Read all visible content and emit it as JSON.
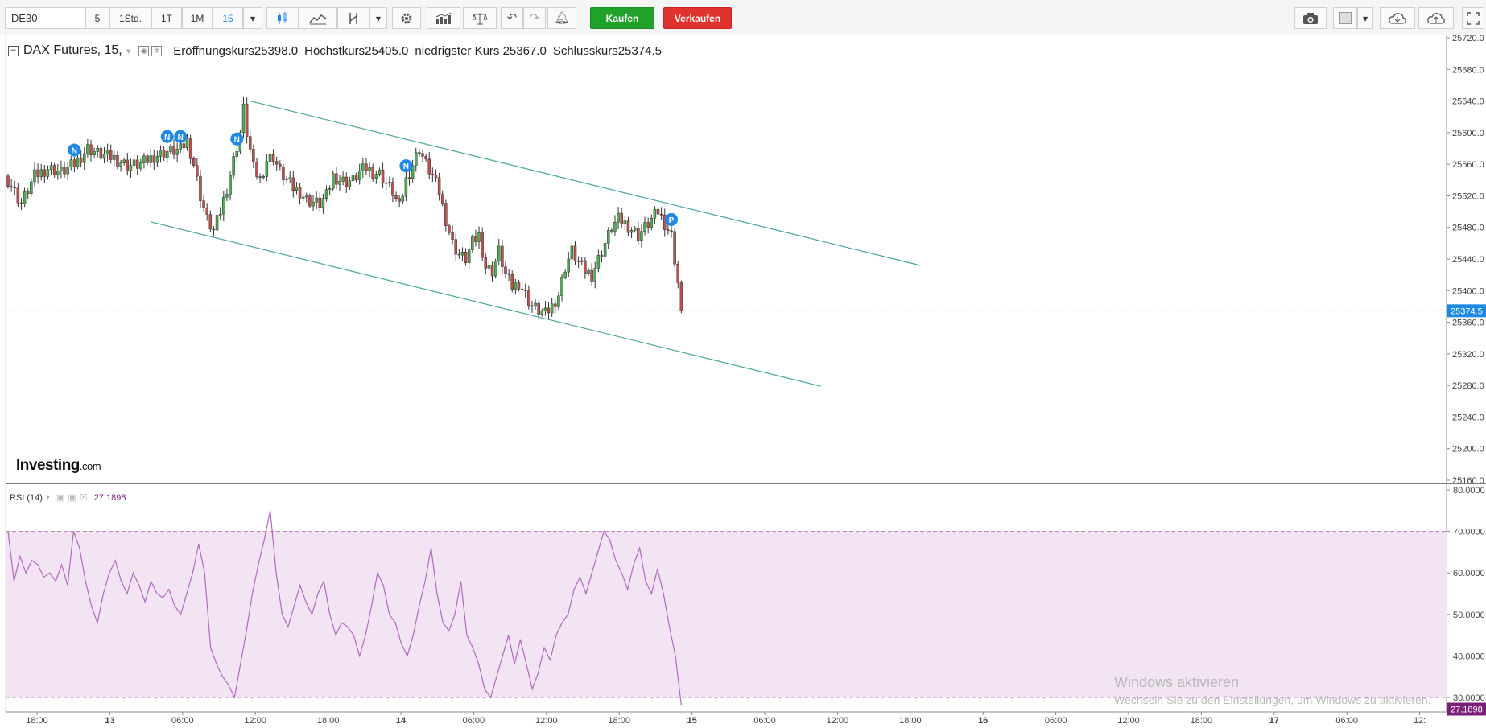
{
  "toolbar": {
    "symbol": "DE30",
    "intervals": [
      "5",
      "1Std.",
      "1T",
      "1M",
      "15"
    ],
    "active_interval": "15",
    "buy_label": "Kaufen",
    "sell_label": "Verkaufen"
  },
  "legend": {
    "title": "DAX Futures, 15,",
    "open_label": "Eröffnungskurs",
    "open_value": "25398.0",
    "high_label": "Höchstkurs",
    "high_value": "25405.0",
    "low_label": "niedrigster Kurs",
    "low_value": "25367.0",
    "close_label": "Schlusskurs",
    "close_value": "25374.5"
  },
  "rsi": {
    "label": "RSI (14)",
    "value": "27.1898"
  },
  "logo": {
    "main": "Investing",
    "suffix": ".com"
  },
  "watermark": {
    "line1": "Windows aktivieren",
    "line2": "Wechseln Sie zu den Einstellungen, um Windows zu aktivieren."
  },
  "colors": {
    "up": "#4caf50",
    "down": "#c0504d",
    "channel": "#4aa3a0",
    "rsi_line": "#b06ac0",
    "rsi_band": "#f2e4f2",
    "price_tag": "#1e88e5",
    "rsi_tag": "#7b1f7b"
  },
  "chart_data": [
    {
      "type": "candlestick",
      "title": "DAX Futures, 15,",
      "ylim": [
        25160,
        25720
      ],
      "y_ticks": [
        "25720.0",
        "25680.0",
        "25640.0",
        "25600.0",
        "25560.0",
        "25520.0",
        "25480.0",
        "25440.0",
        "25400.0",
        "25360.0",
        "25320.0",
        "25280.0",
        "25240.0",
        "25200.0",
        "25160.0"
      ],
      "x_ticks": [
        "18:00",
        "13",
        "06:00",
        "12:00",
        "18:00",
        "14",
        "06:00",
        "12:00",
        "18:00",
        "15",
        "06:00",
        "12:00",
        "18:00",
        "16",
        "06:00",
        "12:00",
        "18:00",
        "17",
        "06:00",
        "12:"
      ],
      "last_price": "25374.5",
      "close_path": [
        [
          0,
          25540
        ],
        [
          4,
          25510
        ],
        [
          8,
          25545
        ],
        [
          12,
          25555
        ],
        [
          16,
          25550
        ],
        [
          20,
          25560
        ],
        [
          24,
          25580
        ],
        [
          28,
          25572
        ],
        [
          32,
          25568
        ],
        [
          36,
          25558
        ],
        [
          40,
          25560
        ],
        [
          44,
          25570
        ],
        [
          48,
          25576
        ],
        [
          52,
          25578
        ],
        [
          54,
          25590
        ],
        [
          56,
          25560
        ],
        [
          58,
          25520
        ],
        [
          60,
          25490
        ],
        [
          62,
          25475
        ],
        [
          64,
          25500
        ],
        [
          66,
          25530
        ],
        [
          68,
          25565
        ],
        [
          70,
          25600
        ],
        [
          71,
          25630
        ],
        [
          72,
          25600
        ],
        [
          74,
          25555
        ],
        [
          76,
          25540
        ],
        [
          78,
          25565
        ],
        [
          80,
          25570
        ],
        [
          82,
          25550
        ],
        [
          84,
          25540
        ],
        [
          86,
          25530
        ],
        [
          88,
          25525
        ],
        [
          90,
          25515
        ],
        [
          92,
          25512
        ],
        [
          94,
          25510
        ],
        [
          96,
          25520
        ],
        [
          98,
          25545
        ],
        [
          100,
          25540
        ],
        [
          102,
          25538
        ],
        [
          104,
          25540
        ],
        [
          106,
          25550
        ],
        [
          108,
          25555
        ],
        [
          110,
          25550
        ],
        [
          112,
          25548
        ],
        [
          116,
          25525
        ],
        [
          118,
          25505
        ],
        [
          120,
          25540
        ],
        [
          122,
          25560
        ],
        [
          124,
          25580
        ],
        [
          126,
          25560
        ],
        [
          128,
          25545
        ],
        [
          130,
          25525
        ],
        [
          132,
          25490
        ],
        [
          134,
          25460
        ],
        [
          136,
          25445
        ],
        [
          138,
          25440
        ],
        [
          140,
          25460
        ],
        [
          142,
          25470
        ],
        [
          144,
          25430
        ],
        [
          146,
          25425
        ],
        [
          148,
          25450
        ],
        [
          150,
          25420
        ],
        [
          152,
          25405
        ],
        [
          154,
          25410
        ],
        [
          156,
          25395
        ],
        [
          158,
          25380
        ],
        [
          160,
          25375
        ],
        [
          162,
          25370
        ],
        [
          164,
          25380
        ],
        [
          166,
          25395
        ],
        [
          168,
          25430
        ],
        [
          170,
          25450
        ],
        [
          172,
          25435
        ],
        [
          174,
          25425
        ],
        [
          176,
          25420
        ],
        [
          178,
          25440
        ],
        [
          180,
          25460
        ],
        [
          182,
          25480
        ],
        [
          184,
          25490
        ],
        [
          186,
          25485
        ],
        [
          188,
          25478
        ],
        [
          190,
          25470
        ],
        [
          192,
          25480
        ],
        [
          194,
          25490
        ],
        [
          196,
          25500
        ],
        [
          198,
          25485
        ],
        [
          200,
          25470
        ],
        [
          201,
          25440
        ],
        [
          202,
          25410
        ],
        [
          203,
          25374.5
        ]
      ],
      "markers": [
        {
          "label": "N",
          "x": 20,
          "y": 25578
        },
        {
          "label": "N",
          "x": 48,
          "y": 25595
        },
        {
          "label": "N",
          "x": 52,
          "y": 25595
        },
        {
          "label": "N",
          "x": 69,
          "y": 25592
        },
        {
          "label": "N",
          "x": 120,
          "y": 25558
        },
        {
          "label": "P",
          "x": 200,
          "y": 25490
        }
      ],
      "channel_lines": [
        {
          "from": [
            73,
            25640
          ],
          "to": [
            275,
            25432
          ]
        },
        {
          "from": [
            43,
            25487
          ],
          "to": [
            245,
            25279
          ]
        }
      ]
    },
    {
      "type": "line",
      "title": "RSI (14)",
      "ylim": [
        25,
        80
      ],
      "y_ticks": [
        "80.0000",
        "70.0000",
        "60.0000",
        "50.0000",
        "40.0000",
        "30.0000"
      ],
      "bands": [
        30,
        70
      ],
      "last_value": "27.1898",
      "series": [
        {
          "values": [
            70,
            58,
            64,
            60,
            63,
            62,
            59,
            60,
            58,
            62,
            57,
            70,
            66,
            58,
            52,
            48,
            55,
            60,
            63,
            58,
            55,
            60,
            57,
            53,
            58,
            55,
            54,
            56,
            52,
            50,
            55,
            60,
            67,
            60,
            42,
            38,
            35,
            33,
            30,
            38,
            46,
            55,
            62,
            68,
            75,
            60,
            50,
            47,
            52,
            57,
            53,
            50,
            55,
            58,
            50,
            45,
            48,
            47,
            45,
            40,
            45,
            52,
            60,
            57,
            50,
            48,
            43,
            40,
            45,
            52,
            58,
            66,
            55,
            48,
            46,
            50,
            58,
            45,
            42,
            38,
            32,
            30,
            35,
            40,
            45,
            38,
            44,
            38,
            32,
            36,
            42,
            39,
            45,
            48,
            50,
            56,
            59,
            55,
            60,
            65,
            70,
            68,
            63,
            60,
            56,
            62,
            66,
            58,
            55,
            61,
            55,
            47,
            40,
            28
          ]
        }
      ]
    }
  ]
}
